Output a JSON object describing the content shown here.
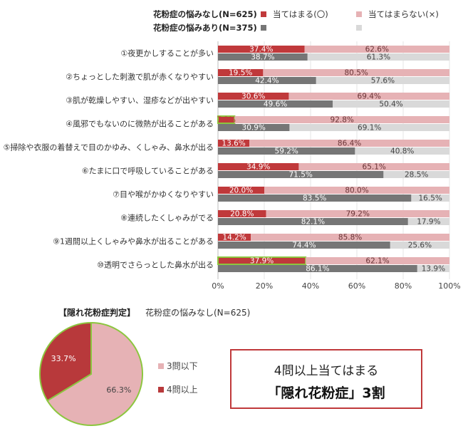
{
  "legend": {
    "groups": [
      {
        "name": "花粉症の悩みなし(N=625)"
      },
      {
        "name": "花粉症の悩みあり(N=375)"
      }
    ],
    "answers": [
      {
        "name": "当てはまる(〇)"
      },
      {
        "name": "当てはまらない(×)"
      }
    ]
  },
  "chart_data": [
    {
      "type": "bar",
      "orientation": "horizontal",
      "stacked": true,
      "x_ticks": [
        "0%",
        "20%",
        "40%",
        "60%",
        "80%",
        "100%"
      ],
      "xlim": [
        0,
        100
      ],
      "categories": [
        "①夜更かしすることが多い",
        "②ちょっとした刺激で肌が赤くなりやすい",
        "③肌が乾燥しやすい、湿疹などが出やすい",
        "④風邪でもないのに微熱が出ることがある",
        "⑤掃除や衣服の着替えで目のかゆみ、くしゃみ、鼻水が出る",
        "⑥たまに口で呼吸していることがある",
        "⑦目や喉がかゆくなりやすい",
        "⑧連続したくしゃみがでる",
        "⑨1週間以上くしゃみや鼻水が出ることがある",
        "⑩透明でさらっとした鼻水が出る"
      ],
      "series": [
        {
          "group": "花粉症の悩みなし(N=625)",
          "answer": "当てはまる(〇)",
          "color": "#c0393b",
          "values": [
            37.4,
            19.5,
            30.6,
            7.2,
            13.6,
            34.9,
            20.0,
            20.8,
            14.2,
            37.9
          ],
          "labels": [
            "37.4%",
            "19.5%",
            "30.6%",
            "7.2%",
            "13.6%",
            "34.9%",
            "20.0%",
            "20.8%",
            "14.2%",
            "37.9%"
          ]
        },
        {
          "group": "花粉症の悩みなし(N=625)",
          "answer": "当てはまらない(×)",
          "color": "#e6b2b5",
          "values": [
            62.6,
            80.5,
            69.4,
            92.8,
            86.4,
            65.1,
            80.0,
            79.2,
            85.8,
            62.1
          ],
          "labels": [
            "62.6%",
            "80.5%",
            "69.4%",
            "92.8%",
            "86.4%",
            "65.1%",
            "80.0%",
            "79.2%",
            "85.8%",
            "62.1%"
          ]
        },
        {
          "group": "花粉症の悩みあり(N=375)",
          "answer": "当てはまる(〇)",
          "color": "#767676",
          "values": [
            38.7,
            42.4,
            49.6,
            30.9,
            59.2,
            71.5,
            83.5,
            82.1,
            74.4,
            86.1
          ],
          "labels": [
            "38.7%",
            "42.4%",
            "49.6%",
            "30.9%",
            "59.2%",
            "71.5%",
            "83.5%",
            "82.1%",
            "74.4%",
            "86.1%"
          ]
        },
        {
          "group": "花粉症の悩みあり(N=375)",
          "answer": "当てはまらない(×)",
          "color": "#d9d9d9",
          "values": [
            61.3,
            57.6,
            50.4,
            69.1,
            40.8,
            28.5,
            16.5,
            17.9,
            25.6,
            13.9
          ],
          "labels": [
            "61.3%",
            "57.6%",
            "50.4%",
            "69.1%",
            "40.8%",
            "28.5%",
            "16.5%",
            "17.9%",
            "25.6%",
            "13.9%"
          ]
        }
      ],
      "highlighted_categories": [
        3,
        9
      ],
      "highlight_color": "#8cc63f"
    },
    {
      "type": "pie",
      "title": "【隠れ花粉症判定】",
      "subtitle": "花粉症の悩みなし(N=625)",
      "slices": [
        {
          "label": "3問以下",
          "value": 66.3,
          "value_label": "66.3%",
          "color": "#e6b2b5"
        },
        {
          "label": "4問以上",
          "value": 33.7,
          "value_label": "33.7%",
          "color": "#b8393b"
        }
      ],
      "outline_color": "#8cc63f"
    }
  ],
  "callout": {
    "line1": "4問以上当てはまる",
    "line2": "「隠れ花粉症」3割"
  }
}
